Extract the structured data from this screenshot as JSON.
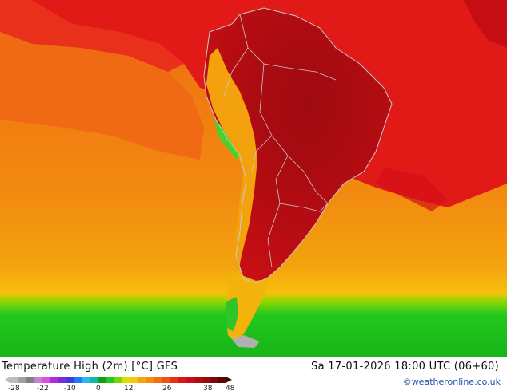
{
  "map": {
    "title": "Temperature High (2m) [°C] GFS",
    "datetime": "Sa 17-01-2026 18:00 UTC (06+60)",
    "credit": "©weatheronline.co.uk",
    "legend": {
      "ticks": [
        "-28",
        "-22",
        "-10",
        "0",
        "12",
        "26",
        "38",
        "48"
      ]
    },
    "colors": {
      "ocean_south": "#f29a0e",
      "ocean_mid": "#f07c10",
      "ocean_north": "#ef5a14",
      "hot": "#e01216",
      "very_hot": "#b80b12",
      "extreme": "#8f0a0e",
      "cold_green": "#33cc33",
      "border": "#c8c8c8"
    }
  }
}
